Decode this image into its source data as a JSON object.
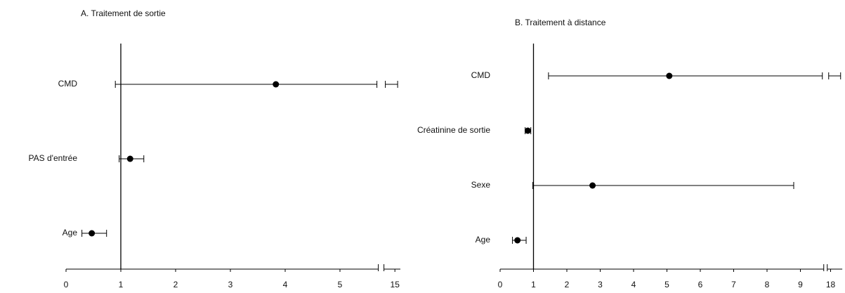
{
  "chart_data": [
    {
      "type": "forest",
      "title": "A. Traitement de sortie",
      "categories": [
        "CMD",
        "PAS d'entrée",
        "Age"
      ],
      "values": [
        3.83,
        1.17,
        0.47
      ],
      "lower": [
        0.9,
        0.97,
        0.29
      ],
      "upper": [
        15.05,
        1.42,
        0.74
      ],
      "xlim": [
        0,
        15.1
      ],
      "xticks": [
        0,
        1,
        2,
        3,
        4,
        5,
        15
      ],
      "xbreak": [
        5.7,
        14.8
      ],
      "ref_line": 1,
      "color": "#000000"
    },
    {
      "type": "forest",
      "title": "B. Traitement à distance",
      "categories": [
        "CMD",
        "Créatinine de sortie",
        "Sexe",
        "Age"
      ],
      "values": [
        5.07,
        0.83,
        2.77,
        0.52
      ],
      "lower": [
        1.45,
        0.75,
        0.98,
        0.37
      ],
      "upper": [
        18.3,
        0.92,
        8.8,
        0.78
      ],
      "xlim": [
        0,
        18.35
      ],
      "xticks": [
        0,
        1,
        2,
        3,
        4,
        5,
        6,
        7,
        8,
        9,
        18
      ],
      "xbreak": [
        9.7,
        17.9
      ],
      "ref_line": 1,
      "color": "#000000"
    }
  ]
}
